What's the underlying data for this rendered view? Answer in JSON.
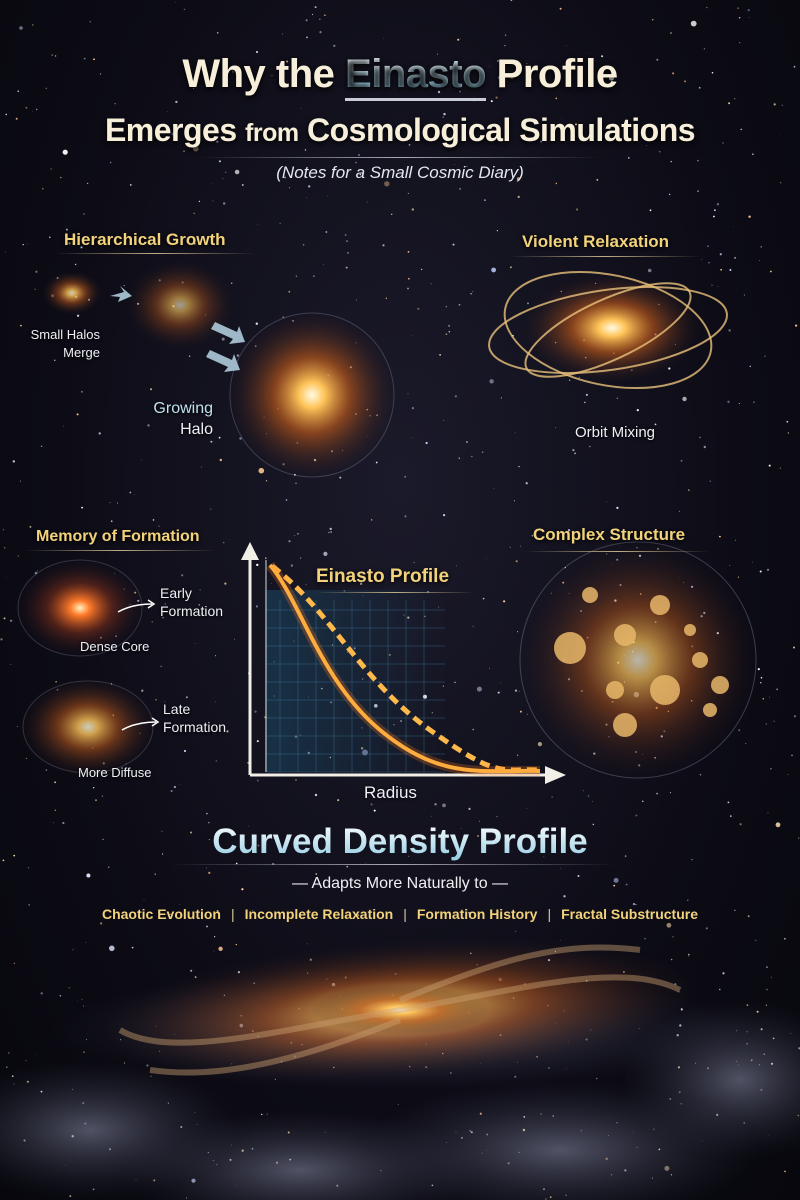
{
  "title": {
    "line1_pre": "Why the",
    "line1_highlight": "Einasto",
    "line1_post": "Profile",
    "line2_a": "Emerges",
    "line2_b": "from",
    "line2_c": "Cosmological Simulations",
    "subtitle": "(Notes for a Small Cosmic Diary)"
  },
  "hierarchical_growth": {
    "heading": "Hierarchical Growth",
    "small_halos": "Small Halos",
    "merge": "Merge",
    "growing": "Growing",
    "halo": "Halo"
  },
  "violent_relaxation": {
    "heading": "Violent Relaxation",
    "label": "Orbit Mixing"
  },
  "memory_of_formation": {
    "heading": "Memory of Formation",
    "early_1": "Early",
    "early_2": "Formation",
    "dense_core": "Dense Core",
    "late_1": "Late",
    "late_2": "Formation",
    "more_diffuse": "More Diffuse"
  },
  "einasto_plot": {
    "title": "Einasto Profile",
    "xlabel": "Radius",
    "curves": [
      "solid",
      "dashed"
    ],
    "colors": {
      "solid": "#ffb03a",
      "dashed": "#ffb84a",
      "axes": "#f2efe6"
    }
  },
  "complex_structure": {
    "heading": "Complex Structure"
  },
  "conclusion": {
    "title": "Curved Density Profile",
    "adapts": "— Adapts More Naturally to —",
    "factors": [
      "Chaotic Evolution",
      "Incomplete Relaxation",
      "Formation History",
      "Fractal Substructure"
    ],
    "separator": "|"
  },
  "colors": {
    "heading": "#f2d27a",
    "accent": "#8fcbe3",
    "background": "#0d0c16"
  }
}
